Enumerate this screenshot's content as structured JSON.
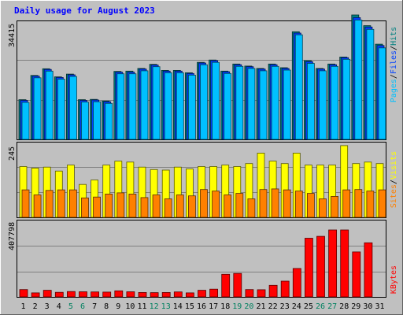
{
  "chart_data": {
    "type": "bar",
    "title": "Daily usage for August 2023",
    "days": [
      "1",
      "2",
      "3",
      "4",
      "5",
      "6",
      "7",
      "8",
      "9",
      "10",
      "11",
      "12",
      "13",
      "14",
      "15",
      "16",
      "17",
      "18",
      "19",
      "20",
      "21",
      "22",
      "23",
      "24",
      "25",
      "26",
      "27",
      "28",
      "29",
      "30",
      "31"
    ],
    "weekend_days": [
      "5",
      "6",
      "12",
      "13",
      "19",
      "20",
      "26",
      "27"
    ],
    "panels": [
      {
        "name": "requests",
        "ytick_label": "34415",
        "ymax": 34415,
        "legend": [
          "Pages",
          "/",
          "Files",
          "/",
          "Hits"
        ],
        "legend_colors": [
          "#00c0ff",
          "#000000",
          "#0040ff",
          "#000000",
          "#008080"
        ],
        "series": [
          {
            "name": "Hits",
            "color": "#008080",
            "values": [
              11800,
              19000,
              21000,
              18600,
              19400,
              11800,
              11900,
              11400,
              20200,
              20300,
              21100,
              22300,
              20500,
              20500,
              19800,
              22900,
              23600,
              20300,
              22400,
              21800,
              21100,
              22400,
              21300,
              32000,
              23400,
              21100,
              22400,
              24500,
              37000,
              33800,
              28300
            ]
          },
          {
            "name": "Files",
            "color": "#0040ff",
            "values": [
              11600,
              18800,
              20800,
              18400,
              19200,
              11600,
              11700,
              11200,
              20000,
              20000,
              20900,
              22100,
              20300,
              20300,
              19600,
              22700,
              23400,
              20100,
              22200,
              21600,
              20900,
              22200,
              21100,
              31600,
              23100,
              20900,
              22200,
              24300,
              36200,
              33400,
              27900
            ]
          },
          {
            "name": "Pages",
            "color": "#00c0ff",
            "values": [
              11000,
              18300,
              20300,
              17900,
              18700,
              11100,
              11200,
              10700,
              19500,
              19500,
              20400,
              21600,
              19800,
              19800,
              19100,
              22200,
              22900,
              19600,
              21700,
              21100,
              20400,
              21700,
              20600,
              31100,
              22600,
              20400,
              21700,
              23800,
              35500,
              32700,
              27200
            ]
          }
        ]
      },
      {
        "name": "visits",
        "ytick_label": "245",
        "ymax": 245,
        "legend": [
          "Sites",
          "/",
          "Visits"
        ],
        "legend_colors": [
          "#ff8000",
          "#000000",
          "#ffff00"
        ],
        "series": [
          {
            "name": "Visits",
            "color": "#ffff00",
            "values": [
              170,
              165,
              168,
              155,
              175,
              110,
              125,
              175,
              188,
              185,
              168,
              160,
              158,
              168,
              162,
              170,
              170,
              175,
              170,
              180,
              215,
              188,
              180,
              215,
              175,
              175,
              175,
              240,
              180,
              185,
              180
            ]
          },
          {
            "name": "Sites",
            "color": "#ff8000",
            "values": [
              92,
              75,
              90,
              92,
              92,
              65,
              68,
              78,
              82,
              78,
              66,
              75,
              62,
              75,
              72,
              93,
              88,
              75,
              80,
              62,
              93,
              95,
              92,
              88,
              80,
              62,
              70,
              92,
              93,
              88,
              92
            ]
          }
        ]
      },
      {
        "name": "kbytes",
        "ytick_label": "407798",
        "ymax": 407798,
        "legend": [
          "KBytes"
        ],
        "legend_colors": [
          "#ff0000"
        ],
        "series": [
          {
            "name": "KBytes",
            "color": "#ff0000",
            "values": [
              40000,
              22000,
              36000,
              25000,
              29000,
              28000,
              27000,
              26000,
              33000,
              28000,
              24000,
              23000,
              24000,
              27000,
              22000,
              36000,
              42000,
              123000,
              128000,
              40000,
              39000,
              63000,
              86000,
              155000,
              320000,
              330000,
              365000,
              365000,
              245000,
              295000,
              0
            ]
          }
        ]
      }
    ]
  }
}
